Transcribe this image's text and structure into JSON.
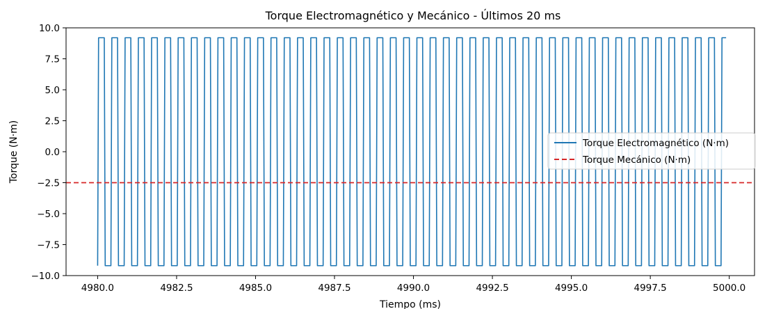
{
  "chart_data": {
    "type": "line",
    "title": "Torque Electromagnético y Mecánico - Últimos 20 ms",
    "xlabel": "Tiempo (ms)",
    "ylabel": "Torque (N·m)",
    "xlim": [
      4979.0,
      5000.8
    ],
    "ylim": [
      -10.0,
      10.0
    ],
    "x_ticks": [
      "4980.0",
      "4982.5",
      "4985.0",
      "4987.5",
      "4990.0",
      "4992.5",
      "4995.0",
      "4997.5",
      "5000.0"
    ],
    "x_tick_values": [
      4980.0,
      4982.5,
      4985.0,
      4987.5,
      4990.0,
      4992.5,
      4995.0,
      4997.5,
      5000.0
    ],
    "y_ticks": [
      "10.0",
      "7.5",
      "5.0",
      "2.5",
      "0.0",
      "−2.5",
      "−5.0",
      "−7.5",
      "−10.0"
    ],
    "y_tick_values": [
      10.0,
      7.5,
      5.0,
      2.5,
      0.0,
      -2.5,
      -5.0,
      -7.5,
      -10.0
    ],
    "grid": false,
    "legend_position": "center-right",
    "series": [
      {
        "name": "Torque Electromagnético (N·m)",
        "style": "solid",
        "color": "#1f77b4",
        "waveform": "trapezoidal square wave",
        "x_start": 4980.0,
        "x_end": 4999.9,
        "period_ms": 0.42,
        "high": 9.2,
        "low": -9.2
      },
      {
        "name": "Torque Mecánico (N·m)",
        "style": "dashed",
        "color": "#d62728",
        "value": -2.5
      }
    ]
  }
}
